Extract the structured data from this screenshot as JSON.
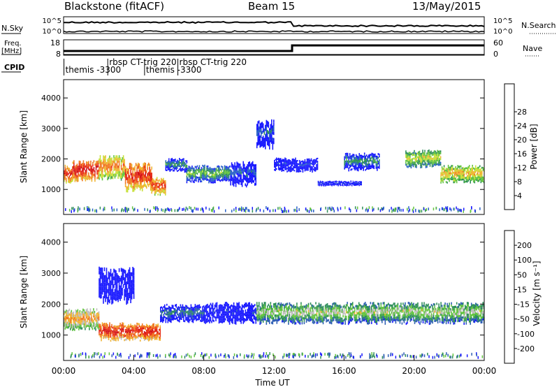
{
  "header": {
    "station": "Blackstone (fitACF)",
    "beam": "Beam 15",
    "date": "13/May/2015"
  },
  "noise_panel": {
    "left_label": "N.Sky",
    "right_label": "N.Search",
    "ticks_left": [
      "10^5",
      "10^0"
    ],
    "ticks_right": [
      "10^5",
      "10^0"
    ]
  },
  "freq_panel": {
    "left_label_1": "Freq.",
    "left_label_2": "[MHz]",
    "ticks_left": [
      "18",
      "8"
    ],
    "ticks_right": [
      "60",
      "0"
    ],
    "right_label": "Nave"
  },
  "cpid_panel": {
    "label": "CPID",
    "entries": [
      {
        "text": "themis -3300",
        "hour": 0.1,
        "row": 1
      },
      {
        "text": "rbsp CT-trig 220",
        "hour": 2.6,
        "row": 0
      },
      {
        "text": "themis -3300",
        "hour": 4.7,
        "row": 1
      },
      {
        "text": "rbsp CT-trig 220",
        "hour": 6.6,
        "row": 0
      }
    ]
  },
  "chart_data": [
    {
      "type": "heatmap",
      "name": "power",
      "ylabel": "Slant Range [km]",
      "ylim": [
        180,
        4600
      ],
      "yticks": [
        "1000",
        "2000",
        "3000",
        "4000"
      ],
      "colorbar": {
        "label": "Power [dB]",
        "ticks": [
          "4",
          "8",
          "12",
          "16",
          "20",
          "24",
          "28"
        ],
        "colors": [
          "#1a1aff",
          "#2a62c8",
          "#2f8f5a",
          "#63c440",
          "#c8e03a",
          "#f0b432",
          "#f07823",
          "#e8321c",
          "#d0101a"
        ]
      },
      "bands": [
        {
          "start": 0.0,
          "end": 0.5,
          "center": 1500,
          "width": 500,
          "level": 0.9
        },
        {
          "start": 0.5,
          "end": 2.0,
          "center": 1600,
          "width": 600,
          "level": 0.95
        },
        {
          "start": 2.0,
          "end": 3.5,
          "center": 1700,
          "width": 700,
          "level": 0.75
        },
        {
          "start": 3.5,
          "end": 5.0,
          "center": 1400,
          "width": 800,
          "level": 0.9
        },
        {
          "start": 5.0,
          "end": 5.8,
          "center": 1100,
          "width": 500,
          "level": 0.85
        },
        {
          "start": 5.8,
          "end": 7.0,
          "center": 1800,
          "width": 400,
          "level": 0.3
        },
        {
          "start": 7.0,
          "end": 9.5,
          "center": 1500,
          "width": 500,
          "level": 0.4
        },
        {
          "start": 9.5,
          "end": 11.0,
          "center": 1500,
          "width": 700,
          "level": 0.2
        },
        {
          "start": 11.0,
          "end": 12.0,
          "center": 2800,
          "width": 800,
          "level": 0.2
        },
        {
          "start": 12.0,
          "end": 14.5,
          "center": 1800,
          "width": 400,
          "level": 0.1
        },
        {
          "start": 14.5,
          "end": 17.0,
          "center": 1200,
          "width": 150,
          "level": 0.12
        },
        {
          "start": 16.0,
          "end": 18.0,
          "center": 1900,
          "width": 500,
          "level": 0.3
        },
        {
          "start": 19.5,
          "end": 21.5,
          "center": 2000,
          "width": 500,
          "level": 0.55
        },
        {
          "start": 21.5,
          "end": 24.0,
          "center": 1500,
          "width": 500,
          "level": 0.65
        }
      ]
    },
    {
      "type": "heatmap",
      "name": "velocity",
      "ylabel": "Slant Range [km]",
      "ylim": [
        180,
        4600
      ],
      "yticks": [
        "1000",
        "2000",
        "3000",
        "4000"
      ],
      "colorbar": {
        "label": "Velocity [m s⁻¹]",
        "ticks": [
          "200",
          "100",
          "50",
          "15",
          "-15",
          "-50",
          "-100",
          "-200"
        ],
        "colors": [
          "#1a1aff",
          "#2f5fb4",
          "#2f8f5a",
          "#63c440",
          "#bebebe",
          "#f0b432",
          "#f07823",
          "#e8321c",
          "#d0101a"
        ]
      },
      "bands": [
        {
          "start": 0.0,
          "end": 2.0,
          "center": 1500,
          "width": 600,
          "level": 0.7
        },
        {
          "start": 2.0,
          "end": 5.5,
          "center": 1100,
          "width": 500,
          "level": 0.92
        },
        {
          "start": 2.0,
          "end": 4.0,
          "center": 2600,
          "width": 1000,
          "level": 0.05
        },
        {
          "start": 5.5,
          "end": 8.0,
          "center": 1700,
          "width": 500,
          "level": 0.25
        },
        {
          "start": 8.0,
          "end": 11.0,
          "center": 1700,
          "width": 600,
          "level": 0.08
        },
        {
          "start": 11.0,
          "end": 24.0,
          "center": 1700,
          "width": 600,
          "level": 0.5
        }
      ],
      "xticks": [
        "00:00",
        "04:00",
        "08:00",
        "12:00",
        "16:00",
        "20:00",
        "00:00"
      ],
      "xlabel": "Time UT",
      "xlim": [
        0,
        24
      ]
    }
  ]
}
